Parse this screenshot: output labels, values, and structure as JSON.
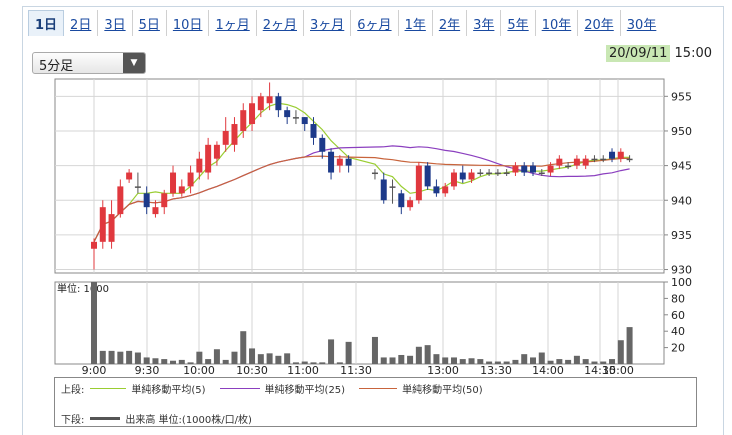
{
  "tabs": [
    "1日",
    "2日",
    "3日",
    "5日",
    "10日",
    "1ヶ月",
    "2ヶ月",
    "3ヶ月",
    "6ヶ月",
    "1年",
    "2年",
    "3年",
    "5年",
    "10年",
    "20年",
    "30年"
  ],
  "active_tab": "1日",
  "period_select": {
    "value": "5分足"
  },
  "timestamp": {
    "date": "20/09/11",
    "time": "15:00"
  },
  "chart_data": {
    "type": "candlestick",
    "price_axis": {
      "min": 929.5,
      "max": 957.5,
      "ticks": [
        955,
        950,
        945,
        940,
        935,
        930
      ]
    },
    "volume_axis": {
      "min": 0,
      "max": 100,
      "ticks": [
        100,
        80,
        60,
        40,
        20
      ]
    },
    "x_tick_labels": [
      "9:00",
      "9:30",
      "10:00",
      "10:30",
      "11:00",
      "11:30",
      "13:00",
      "13:30",
      "14:00",
      "14:30",
      "15:00"
    ],
    "volume_unit_label": "単位: 1000",
    "candle_colors": {
      "up": "#e0383e",
      "down": "#1d3a8a",
      "flat": "#555555"
    },
    "volume_color": "#666666",
    "sessions": [
      {
        "start_time": "9:00",
        "bars": 30
      },
      {
        "start_time": "12:30",
        "bars": 30
      }
    ],
    "morning": {
      "open": [
        933,
        934,
        934,
        938,
        943,
        942,
        941,
        938,
        939,
        941,
        941,
        942,
        944,
        944,
        946,
        948,
        948,
        950,
        951,
        953,
        954,
        955,
        953,
        952,
        952,
        951,
        949,
        947,
        945,
        946
      ],
      "close": [
        934,
        939,
        938,
        942,
        944,
        942,
        939,
        939,
        941,
        944,
        942,
        944,
        946,
        948,
        948,
        950,
        951,
        953,
        954,
        955,
        955,
        953,
        952,
        952,
        951,
        949,
        947,
        944,
        946,
        945
      ],
      "high": [
        934.5,
        940,
        940,
        943,
        944.5,
        944,
        942,
        940,
        941.5,
        945,
        943,
        945,
        947,
        949,
        948.5,
        952,
        952,
        954,
        955,
        955.5,
        957,
        955.5,
        953.5,
        953,
        952,
        952,
        949.5,
        947.5,
        946.5,
        946.5
      ],
      "low": [
        930,
        933,
        933,
        937.5,
        942.5,
        941,
        938,
        937.5,
        938,
        940.5,
        940.5,
        941,
        943,
        943,
        945,
        947,
        947,
        949,
        950,
        952,
        953,
        952,
        951,
        951,
        950,
        948,
        946,
        943,
        944,
        944
      ],
      "volume": [
        100,
        16,
        16,
        15,
        16,
        14,
        8,
        7,
        6,
        4,
        5,
        2,
        15,
        6,
        18,
        5,
        15,
        40,
        19,
        12,
        13,
        10,
        13,
        2,
        3,
        2,
        2,
        30,
        2,
        27
      ]
    },
    "afternoon": {
      "open": [
        944,
        943,
        942,
        941,
        939,
        940,
        945,
        942,
        941,
        942,
        944,
        943,
        944,
        944,
        944,
        944,
        944,
        945,
        945,
        944,
        944,
        945,
        945,
        945,
        945,
        946,
        946,
        947,
        946,
        946
      ],
      "close": [
        944,
        940,
        942,
        939,
        940,
        945,
        942,
        941,
        942,
        944,
        943,
        944,
        944,
        944,
        944,
        944,
        945,
        944,
        944,
        944,
        945,
        946,
        945,
        946,
        946,
        946,
        946,
        946,
        947,
        946
      ],
      "high": [
        944.5,
        944,
        943,
        941.5,
        940.5,
        945.5,
        945.5,
        943,
        942.5,
        944.5,
        945,
        944.5,
        944.5,
        944.5,
        944.5,
        944.5,
        945.5,
        945.5,
        945.5,
        944.5,
        945.5,
        946.5,
        945.5,
        946.5,
        946.5,
        946.5,
        946.5,
        947.5,
        947.5,
        946.5
      ],
      "low": [
        943,
        939.5,
        939.5,
        938,
        938.5,
        939.5,
        941.5,
        940.5,
        940.5,
        941.5,
        942.5,
        942.5,
        943.5,
        943.5,
        943.5,
        943.5,
        943.5,
        943.5,
        943.5,
        943.5,
        943.5,
        944.5,
        944.5,
        944.5,
        944.5,
        945.5,
        945.5,
        945.5,
        945.5,
        945.5
      ],
      "volume": [
        33,
        8,
        8,
        11,
        10,
        21,
        23,
        12,
        8,
        8,
        6,
        7,
        6,
        3,
        3,
        3,
        5,
        12,
        8,
        14,
        4,
        6,
        5,
        10,
        6,
        3,
        3,
        6,
        29,
        45
      ]
    },
    "moving_averages": [
      {
        "color": "#9acd32",
        "period": 5
      },
      {
        "color": "#8b3fbf",
        "period": 25
      },
      {
        "color": "#c8643c",
        "period": 50
      }
    ]
  },
  "legend": {
    "upper_label": "上段:",
    "lower_label": "下段:",
    "ma5_label": "単純移動平均(5)",
    "ma25_label": "単純移動平均(25)",
    "ma50_label": "単純移動平均(50)",
    "volume_label": "出来高 単位:(1000株/口/枚)"
  }
}
